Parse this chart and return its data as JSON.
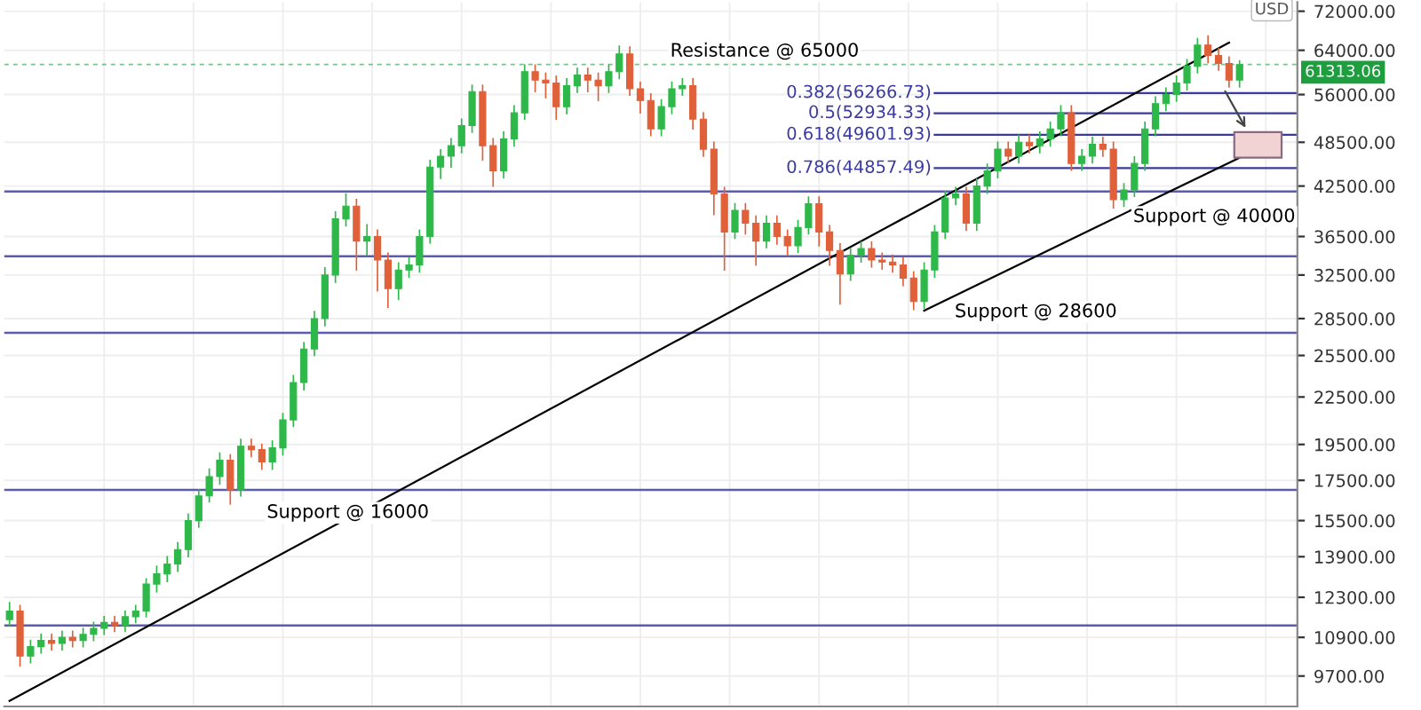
{
  "chart_data": {
    "type": "candlestick",
    "categories": [
      null,
      null,
      null,
      null,
      null,
      null,
      null,
      null,
      null,
      null,
      null,
      null,
      null,
      null,
      null,
      null,
      null,
      null,
      null,
      null,
      null,
      null,
      null,
      null,
      null,
      null,
      null,
      null,
      null,
      null,
      null,
      null,
      null,
      null,
      null,
      null,
      null,
      null,
      null,
      null,
      null,
      null,
      null,
      null,
      null,
      null,
      null,
      null,
      null,
      null,
      null,
      null,
      null,
      null,
      null,
      null,
      null,
      null,
      null,
      null,
      null,
      null,
      null,
      null,
      null,
      null,
      null,
      null,
      null,
      null,
      null,
      null,
      null,
      null,
      null,
      null,
      null,
      null,
      null,
      null,
      null,
      null,
      null,
      null,
      null,
      null,
      null,
      null,
      null,
      null,
      null,
      null,
      null,
      null,
      null,
      null,
      null,
      null,
      null,
      null,
      null,
      null,
      null,
      null,
      null,
      null,
      null,
      null,
      null,
      null,
      null,
      null,
      null,
      null,
      null,
      null,
      null,
      null
    ],
    "ohlc": [
      [
        11500,
        12100,
        11300,
        11800
      ],
      [
        11800,
        12000,
        10000,
        10300
      ],
      [
        10300,
        10800,
        10100,
        10600
      ],
      [
        10600,
        11000,
        10400,
        10800
      ],
      [
        10800,
        11000,
        10500,
        10700
      ],
      [
        10700,
        11100,
        10500,
        10900
      ],
      [
        10900,
        11100,
        10600,
        10800
      ],
      [
        10800,
        11200,
        10600,
        11000
      ],
      [
        11000,
        11400,
        10800,
        11200
      ],
      [
        11200,
        11600,
        11000,
        11400
      ],
      [
        11400,
        11600,
        11100,
        11300
      ],
      [
        11300,
        11800,
        11100,
        11600
      ],
      [
        11600,
        12000,
        11400,
        11800
      ],
      [
        11800,
        13000,
        11600,
        12800
      ],
      [
        12800,
        13500,
        12500,
        13200
      ],
      [
        13200,
        13900,
        12900,
        13600
      ],
      [
        13600,
        14500,
        13300,
        14200
      ],
      [
        14200,
        15800,
        13900,
        15500
      ],
      [
        15500,
        17000,
        15200,
        16700
      ],
      [
        16700,
        18100,
        16400,
        17700
      ],
      [
        17700,
        19000,
        17300,
        18600
      ],
      [
        18600,
        18900,
        16300,
        17000
      ],
      [
        17000,
        19800,
        16700,
        19400
      ],
      [
        19400,
        19800,
        18800,
        19200
      ],
      [
        19200,
        19500,
        18100,
        18500
      ],
      [
        18500,
        19700,
        18100,
        19300
      ],
      [
        19300,
        21400,
        18900,
        21000
      ],
      [
        21000,
        24000,
        20600,
        23500
      ],
      [
        23500,
        26500,
        23000,
        26000
      ],
      [
        26000,
        29100,
        25500,
        28500
      ],
      [
        28500,
        33200,
        27900,
        32500
      ],
      [
        32500,
        39300,
        31800,
        38500
      ],
      [
        38500,
        41500,
        37700,
        40000
      ],
      [
        40000,
        40800,
        33000,
        36000
      ],
      [
        36000,
        37800,
        34500,
        36500
      ],
      [
        36500,
        37200,
        31000,
        34000
      ],
      [
        34000,
        34700,
        29500,
        31200
      ],
      [
        31200,
        33700,
        30200,
        33000
      ],
      [
        33000,
        34200,
        32300,
        33500
      ],
      [
        33500,
        37200,
        32800,
        36500
      ],
      [
        36500,
        45900,
        35800,
        45000
      ],
      [
        45000,
        47400,
        43500,
        46500
      ],
      [
        46500,
        49000,
        45000,
        48000
      ],
      [
        48000,
        52000,
        47000,
        51000
      ],
      [
        51000,
        57600,
        50000,
        56500
      ],
      [
        56500,
        57600,
        46000,
        48000
      ],
      [
        48000,
        49000,
        42500,
        44500
      ],
      [
        44500,
        50000,
        43600,
        49000
      ],
      [
        49000,
        54100,
        48000,
        53000
      ],
      [
        53000,
        61200,
        52000,
        60000
      ],
      [
        60000,
        61200,
        56500,
        58500
      ],
      [
        58500,
        59700,
        55500,
        58000
      ],
      [
        58000,
        59200,
        52000,
        54000
      ],
      [
        54000,
        58700,
        52900,
        57500
      ],
      [
        57500,
        60600,
        56400,
        59400
      ],
      [
        59400,
        60600,
        56500,
        58500
      ],
      [
        58500,
        59700,
        55000,
        57500
      ],
      [
        57500,
        61200,
        56400,
        60000
      ],
      [
        60000,
        64800,
        58800,
        63300
      ],
      [
        63300,
        64600,
        55900,
        57000
      ],
      [
        57000,
        58100,
        53000,
        55000
      ],
      [
        55000,
        56100,
        49500,
        50500
      ],
      [
        50500,
        55100,
        49500,
        54000
      ],
      [
        54000,
        58100,
        52900,
        57000
      ],
      [
        57000,
        58700,
        55900,
        57500
      ],
      [
        57500,
        58700,
        50500,
        52000
      ],
      [
        52000,
        53000,
        46500,
        47500
      ],
      [
        47500,
        48500,
        39000,
        41500
      ],
      [
        41500,
        42300,
        33000,
        37000
      ],
      [
        37000,
        40300,
        36300,
        39500
      ],
      [
        39500,
        40300,
        36800,
        38000
      ],
      [
        38000,
        38800,
        33500,
        36000
      ],
      [
        36000,
        38800,
        35300,
        38000
      ],
      [
        38000,
        38800,
        35700,
        36500
      ],
      [
        36500,
        37200,
        34500,
        35500
      ],
      [
        35500,
        38300,
        34800,
        37500
      ],
      [
        37500,
        41100,
        36800,
        40300
      ],
      [
        40300,
        41100,
        35500,
        37000
      ],
      [
        37000,
        37700,
        33500,
        35000
      ],
      [
        35000,
        35700,
        29800,
        32600
      ],
      [
        32600,
        35200,
        32000,
        34500
      ],
      [
        34500,
        35900,
        33800,
        35200
      ],
      [
        35200,
        35900,
        33300,
        34000
      ],
      [
        34000,
        34700,
        33100,
        33800
      ],
      [
        33800,
        34500,
        32800,
        33500
      ],
      [
        33500,
        34200,
        31500,
        32200
      ],
      [
        32200,
        32800,
        29300,
        30000
      ],
      [
        30000,
        33700,
        29400,
        33000
      ],
      [
        33000,
        37700,
        32300,
        37000
      ],
      [
        37000,
        41800,
        36300,
        41000
      ],
      [
        41000,
        42300,
        40200,
        41500
      ],
      [
        41500,
        42300,
        37200,
        38000
      ],
      [
        38000,
        43400,
        37200,
        42500
      ],
      [
        42500,
        45400,
        41600,
        44500
      ],
      [
        44500,
        48500,
        43600,
        47500
      ],
      [
        47500,
        48500,
        45600,
        46500
      ],
      [
        46500,
        49500,
        45600,
        48500
      ],
      [
        48500,
        49500,
        47000,
        48000
      ],
      [
        48000,
        50000,
        47000,
        49000
      ],
      [
        49000,
        51500,
        48000,
        50500
      ],
      [
        50500,
        54100,
        49500,
        53000
      ],
      [
        53000,
        54100,
        44600,
        45500
      ],
      [
        45500,
        47400,
        44600,
        46500
      ],
      [
        46500,
        49200,
        45600,
        48200
      ],
      [
        48200,
        49200,
        46500,
        47500
      ],
      [
        47500,
        48500,
        39800,
        40800
      ],
      [
        40800,
        42800,
        40000,
        42000
      ],
      [
        42000,
        46400,
        41200,
        45500
      ],
      [
        45500,
        51500,
        44600,
        50500
      ],
      [
        50500,
        55600,
        49500,
        54500
      ],
      [
        54500,
        57100,
        53400,
        56000
      ],
      [
        56000,
        59200,
        54900,
        58000
      ],
      [
        58000,
        62200,
        56800,
        61000
      ],
      [
        61000,
        66300,
        59800,
        65000
      ],
      [
        65000,
        66800,
        61700,
        63000
      ],
      [
        63000,
        64300,
        60300,
        61500
      ],
      [
        61500,
        62700,
        57300,
        58500
      ],
      [
        58500,
        62000,
        57300,
        61313.06
      ]
    ],
    "series": [
      {
        "type": "line",
        "color": "#000000",
        "values": [
          9000,
          null,
          null,
          null,
          null,
          null,
          null,
          null,
          null,
          null,
          null,
          null,
          null,
          null,
          null,
          null,
          null,
          null,
          null,
          null,
          null,
          null,
          null,
          null,
          null,
          null,
          null,
          null,
          null,
          null,
          null,
          null,
          null,
          null,
          null,
          null,
          null,
          null,
          null,
          null,
          null,
          null,
          null,
          null,
          null,
          null,
          null,
          null,
          null,
          null,
          null,
          null,
          null,
          null,
          null,
          null,
          null,
          null,
          null,
          null,
          null,
          null,
          null,
          null,
          null,
          null,
          null,
          null,
          null,
          null,
          null,
          null,
          null,
          null,
          null,
          null,
          null,
          null,
          null,
          null,
          null,
          null,
          null,
          null,
          null,
          null,
          null,
          null,
          null,
          null,
          null,
          null,
          null,
          null,
          null,
          null,
          null,
          null,
          null,
          null,
          null,
          null,
          null,
          null,
          null,
          null,
          null,
          null,
          null,
          null,
          null,
          null,
          null,
          null,
          null,
          null,
          65500,
          null
        ]
      },
      {
        "type": "line",
        "color": "#000000",
        "values": [
          null,
          null,
          null,
          null,
          null,
          null,
          null,
          null,
          null,
          null,
          null,
          null,
          null,
          null,
          null,
          null,
          null,
          null,
          null,
          null,
          null,
          null,
          null,
          null,
          null,
          null,
          null,
          null,
          null,
          null,
          null,
          null,
          null,
          null,
          null,
          null,
          null,
          null,
          null,
          null,
          null,
          null,
          null,
          null,
          null,
          null,
          null,
          null,
          null,
          null,
          null,
          null,
          null,
          null,
          null,
          null,
          null,
          null,
          null,
          null,
          null,
          null,
          null,
          null,
          null,
          null,
          null,
          null,
          null,
          null,
          null,
          null,
          null,
          null,
          null,
          null,
          null,
          null,
          null,
          null,
          null,
          null,
          null,
          null,
          null,
          null,
          null,
          29200,
          null,
          null,
          null,
          null,
          null,
          null,
          null,
          null,
          null,
          null,
          null,
          null,
          null,
          null,
          null,
          null,
          null,
          null,
          null,
          null,
          null,
          null,
          null,
          null,
          null,
          null,
          null,
          null,
          null,
          46300
        ]
      }
    ],
    "log": true,
    "ylim": [
      8850,
      74000
    ],
    "yticks": [
      {
        "value": 9700,
        "label": "9700.00"
      },
      {
        "value": 10900,
        "label": "10900.00"
      },
      {
        "value": 12300,
        "label": "12300.00"
      },
      {
        "value": 13900,
        "label": "13900.00"
      },
      {
        "value": 15500,
        "label": "15500.00"
      },
      {
        "value": 17500,
        "label": "17500.00"
      },
      {
        "value": 19500,
        "label": "19500.00"
      },
      {
        "value": 22500,
        "label": "22500.00"
      },
      {
        "value": 25500,
        "label": "25500.00"
      },
      {
        "value": 28500,
        "label": "28500.00"
      },
      {
        "value": 32500,
        "label": "32500.00"
      },
      {
        "value": 36500,
        "label": "36500.00"
      },
      {
        "value": 42500,
        "label": "42500.00"
      },
      {
        "value": 48500,
        "label": "48500.00"
      },
      {
        "value": 56000,
        "label": "56000.00"
      },
      {
        "value": 64000,
        "label": "64000.00"
      },
      {
        "value": 72000,
        "label": "72000.00"
      }
    ],
    "ylabel": "USD",
    "tick_labels": "y",
    "grid": true,
    "ref_lines": [
      {
        "axis": "y",
        "value": 41800,
        "label": null,
        "color": "#5b5bb0"
      },
      {
        "axis": "y",
        "value": 34400,
        "label": null,
        "color": "#5b5bb0"
      },
      {
        "axis": "y",
        "value": 27300,
        "label": null,
        "color": "#5b5bb0"
      },
      {
        "axis": "y",
        "value": 17000,
        "label": null,
        "color": "#5b5bb0"
      },
      {
        "axis": "y",
        "value": 11300,
        "label": null,
        "color": "#5b5bb0"
      },
      {
        "axis": "y",
        "value": 56266.73,
        "label": "0.382(56266.73)",
        "color": "#3a3aa0"
      },
      {
        "axis": "y",
        "value": 52934.33,
        "label": "0.5(52934.33)",
        "color": "#3a3aa0"
      },
      {
        "axis": "y",
        "value": 49601.93,
        "label": "0.618(49601.93)",
        "color": "#3a3aa0"
      },
      {
        "axis": "y",
        "value": 44857.49,
        "label": "0.786(44857.49)",
        "color": "#3a3aa0"
      },
      {
        "axis": "y",
        "value": 61313.06,
        "label": "61313.06",
        "color": "#1e9e3e",
        "line_style": "dashed"
      }
    ],
    "annotations": [
      "Resistance @ 65000",
      "Support @ 28600",
      "Support @ 40000",
      "Support @ 16000"
    ]
  }
}
